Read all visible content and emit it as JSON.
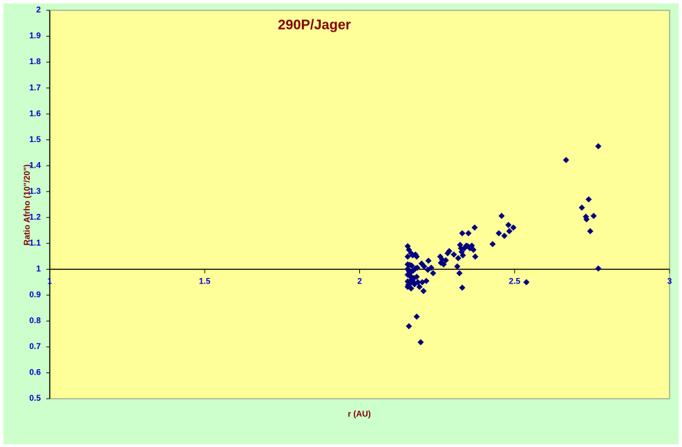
{
  "chart_data": {
    "type": "scatter",
    "title": "290P/Jager",
    "x_label": "r (AU)",
    "y_label": "Ratio Afrho (10\"/20\")",
    "x": [
      2.155,
      2.159,
      2.166,
      2.155,
      2.171,
      2.18,
      2.184,
      2.155,
      2.162,
      2.168,
      2.155,
      2.159,
      2.164,
      2.173,
      2.18,
      2.186,
      2.155,
      2.162,
      2.168,
      2.175,
      2.184,
      2.155,
      2.164,
      2.171,
      2.177,
      2.155,
      2.166,
      2.157,
      2.162,
      2.188,
      2.193,
      2.206,
      2.2,
      2.208,
      2.202,
      2.215,
      2.22,
      2.222,
      2.231,
      2.237,
      2.159,
      2.184,
      2.197,
      2.26,
      2.262,
      2.266,
      2.271,
      2.278,
      2.284,
      2.289,
      2.304,
      2.315,
      2.318,
      2.322,
      2.324,
      2.327,
      2.329,
      2.333,
      2.331,
      2.331,
      2.338,
      2.344,
      2.349,
      2.356,
      2.351,
      2.362,
      2.367,
      2.371,
      2.373,
      2.429,
      2.449,
      2.458,
      2.467,
      2.48,
      2.483,
      2.496,
      2.538,
      2.666,
      2.717,
      2.73,
      2.732,
      2.739,
      2.744,
      2.755,
      2.77,
      2.77
    ],
    "values": [
      1.089,
      1.075,
      1.062,
      1.049,
      1.054,
      1.057,
      1.049,
      1.019,
      1.017,
      1.014,
      1.001,
      0.993,
      0.987,
      0.995,
      1.003,
      1.006,
      0.979,
      0.974,
      0.969,
      0.966,
      0.971,
      0.953,
      0.947,
      0.955,
      0.942,
      0.932,
      0.926,
      0.94,
      0.953,
      0.95,
      0.932,
      0.916,
      1.022,
      1.011,
      0.95,
      0.955,
      0.998,
      1.033,
      1.006,
      0.985,
      0.78,
      0.817,
      0.718,
      1.049,
      1.025,
      1.038,
      1.019,
      1.035,
      1.062,
      1.07,
      1.057,
      1.011,
      1.043,
      0.985,
      1.094,
      1.081,
      1.067,
      1.054,
      1.139,
      0.929,
      1.081,
      1.091,
      1.089,
      1.081,
      1.139,
      1.091,
      1.075,
      1.161,
      1.049,
      1.097,
      1.139,
      1.206,
      1.129,
      1.171,
      1.147,
      1.161,
      0.95,
      1.422,
      1.238,
      1.203,
      1.193,
      1.27,
      1.147,
      1.206,
      1.475,
      1.003
    ],
    "color": "#000080",
    "xlim": [
      1,
      3
    ],
    "xticks": [
      1,
      1.5,
      2,
      2.5,
      3
    ],
    "ylim": [
      0.5,
      2
    ],
    "yticks": [
      0.5,
      0.6,
      0.7,
      0.8,
      0.9,
      1,
      1.1,
      1.2,
      1.3,
      1.4,
      1.5,
      1.6,
      1.7,
      1.8,
      1.9,
      2
    ],
    "x_axis_crosses": 1
  }
}
